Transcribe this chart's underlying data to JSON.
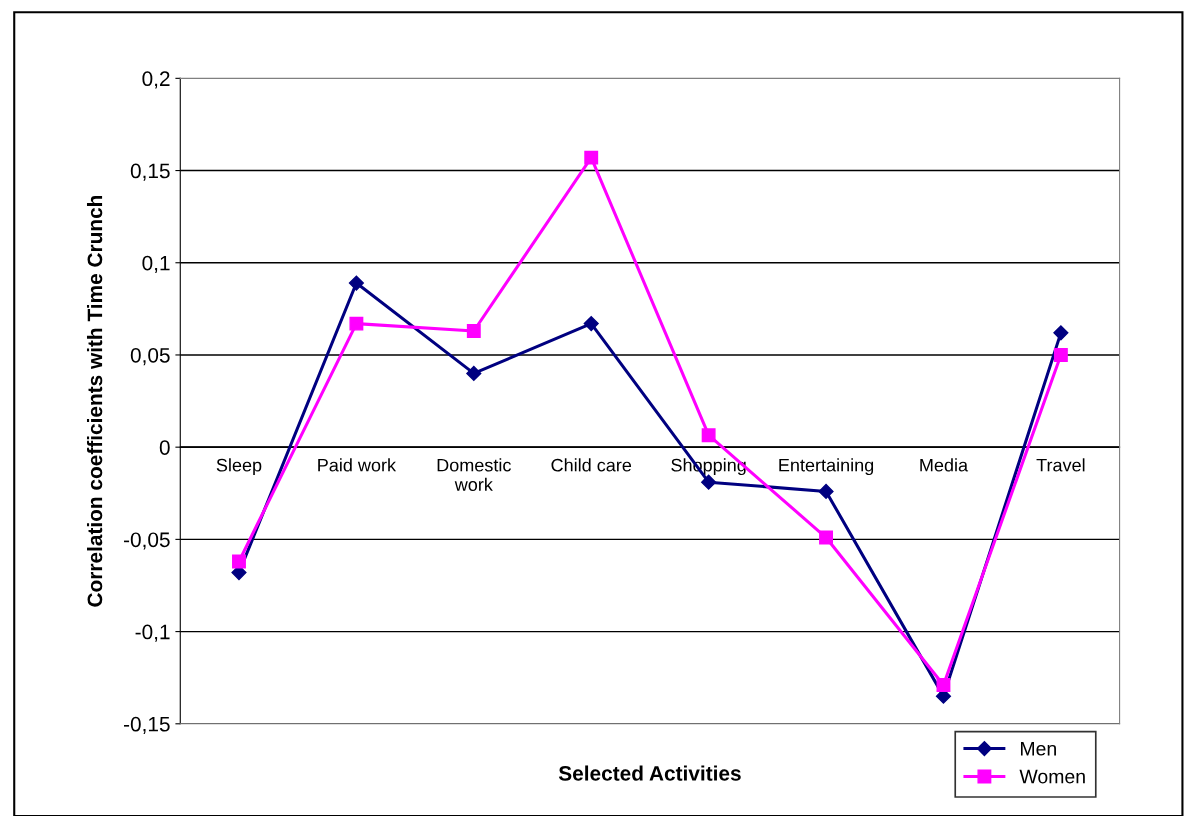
{
  "chart_data": {
    "type": "line",
    "categories": [
      "Sleep",
      "Paid work",
      "Domestic\nwork",
      "Child care",
      "Shopping",
      "Entertaining",
      "Media",
      "Travel"
    ],
    "series": [
      {
        "name": "Men",
        "color": "#000080",
        "marker": "diamond",
        "values": [
          -0.068,
          0.089,
          0.04,
          0.067,
          -0.019,
          -0.024,
          -0.135,
          0.062
        ]
      },
      {
        "name": "Women",
        "color": "#ff00ff",
        "marker": "square",
        "values": [
          -0.062,
          0.067,
          0.063,
          0.157,
          0.0065,
          -0.049,
          -0.129,
          0.05
        ]
      }
    ],
    "xlabel": "Selected Activities",
    "ylabel": "Correlation coefficients with Time Crunch",
    "ylim": [
      -0.15,
      0.2
    ],
    "yticks": [
      {
        "value": -0.15,
        "label": "-0,15"
      },
      {
        "value": -0.1,
        "label": "-0,1"
      },
      {
        "value": -0.05,
        "label": "-0,05"
      },
      {
        "value": 0,
        "label": "0"
      },
      {
        "value": 0.05,
        "label": "0,05"
      },
      {
        "value": 0.1,
        "label": "0,1"
      },
      {
        "value": 0.15,
        "label": "0,15"
      },
      {
        "value": 0.2,
        "label": "0,2"
      }
    ],
    "grid": "y",
    "legend": "bottom right",
    "line_style": "solid"
  }
}
